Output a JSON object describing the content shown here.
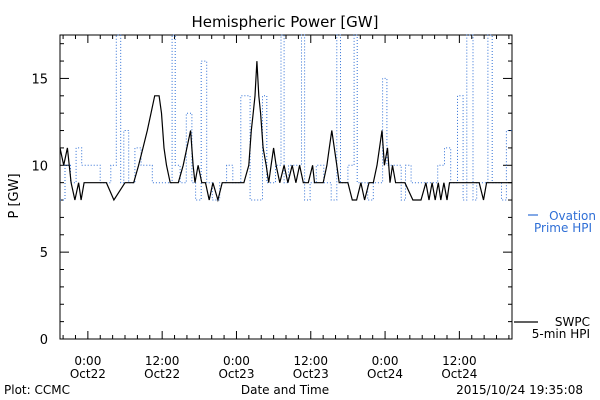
{
  "chart_data": {
    "type": "line",
    "title": "Hemispheric Power [GW]",
    "ylabel": "P [GW]",
    "xlabel": "Date and Time",
    "ylim": [
      0,
      17.5
    ],
    "y_ticks": [
      "0",
      "5",
      "10",
      "15"
    ],
    "x_unit": "hours from 2015-10-22 00:00 UT",
    "xlim": [
      -4.5,
      68.5
    ],
    "x_ticks": [
      {
        "x": 0,
        "time": "0:00",
        "date": "Oct22"
      },
      {
        "x": 12,
        "time": "12:00",
        "date": "Oct22"
      },
      {
        "x": 24,
        "time": "0:00",
        "date": "Oct23"
      },
      {
        "x": 36,
        "time": "12:00",
        "date": "Oct23"
      },
      {
        "x": 48,
        "time": "0:00",
        "date": "Oct24"
      },
      {
        "x": 60,
        "time": "12:00",
        "date": "Oct24"
      }
    ],
    "grid": false,
    "series": [
      {
        "name": "SWPC 5-min HPI",
        "color": "#000000",
        "style": "solid",
        "points": [
          [
            -4.5,
            11
          ],
          [
            -3.9,
            10
          ],
          [
            -3.3,
            11
          ],
          [
            -2.7,
            9
          ],
          [
            -2.1,
            8
          ],
          [
            -1.5,
            9
          ],
          [
            -1.1,
            8
          ],
          [
            -0.6,
            9
          ],
          [
            3.0,
            9
          ],
          [
            4.2,
            8
          ],
          [
            6.0,
            9
          ],
          [
            7.4,
            9
          ],
          [
            8.2,
            10
          ],
          [
            8.9,
            11
          ],
          [
            9.6,
            12
          ],
          [
            10.2,
            13
          ],
          [
            10.8,
            14
          ],
          [
            11.5,
            14
          ],
          [
            11.9,
            13
          ],
          [
            12.3,
            11
          ],
          [
            12.7,
            10
          ],
          [
            13.3,
            9
          ],
          [
            13.9,
            9
          ],
          [
            14.6,
            9
          ],
          [
            15.4,
            10
          ],
          [
            16.0,
            11
          ],
          [
            16.6,
            12
          ],
          [
            17.0,
            10
          ],
          [
            17.3,
            9
          ],
          [
            17.8,
            10
          ],
          [
            18.4,
            9
          ],
          [
            19.0,
            9
          ],
          [
            19.6,
            8
          ],
          [
            20.2,
            9
          ],
          [
            21.0,
            8
          ],
          [
            21.7,
            9
          ],
          [
            22.4,
            9
          ],
          [
            23.5,
            9
          ],
          [
            24.2,
            9
          ],
          [
            25.2,
            9
          ],
          [
            26.0,
            10
          ],
          [
            26.4,
            12
          ],
          [
            26.7,
            13
          ],
          [
            27.0,
            14
          ],
          [
            27.3,
            16
          ],
          [
            27.6,
            14
          ],
          [
            27.9,
            13
          ],
          [
            28.3,
            11
          ],
          [
            28.8,
            10
          ],
          [
            29.2,
            9
          ],
          [
            29.6,
            10
          ],
          [
            30.0,
            11
          ],
          [
            30.4,
            10
          ],
          [
            31.0,
            9
          ],
          [
            31.7,
            10
          ],
          [
            32.3,
            9
          ],
          [
            33.0,
            10
          ],
          [
            33.6,
            9
          ],
          [
            34.2,
            10
          ],
          [
            34.8,
            9
          ],
          [
            35.6,
            9
          ],
          [
            36.3,
            10
          ],
          [
            36.6,
            9
          ],
          [
            37.2,
            9
          ],
          [
            38.0,
            9
          ],
          [
            38.6,
            10
          ],
          [
            39.0,
            11
          ],
          [
            39.4,
            12
          ],
          [
            39.8,
            11
          ],
          [
            40.2,
            10
          ],
          [
            40.6,
            9
          ],
          [
            41.3,
            9
          ],
          [
            42.0,
            9
          ],
          [
            42.7,
            8
          ],
          [
            43.4,
            8
          ],
          [
            44.1,
            9
          ],
          [
            44.7,
            8
          ],
          [
            45.4,
            9
          ],
          [
            46.1,
            9
          ],
          [
            46.7,
            10
          ],
          [
            47.1,
            11
          ],
          [
            47.5,
            12
          ],
          [
            47.9,
            10
          ],
          [
            48.4,
            11
          ],
          [
            48.8,
            9
          ],
          [
            49.2,
            10
          ],
          [
            49.7,
            9
          ],
          [
            50.4,
            9
          ],
          [
            51.2,
            9
          ],
          [
            52.5,
            8
          ],
          [
            53.8,
            8
          ],
          [
            54.6,
            9
          ],
          [
            55.1,
            8
          ],
          [
            55.6,
            9
          ],
          [
            56.1,
            8
          ],
          [
            56.6,
            9
          ],
          [
            57.0,
            8
          ],
          [
            57.5,
            9
          ],
          [
            58.0,
            8
          ],
          [
            58.4,
            9
          ],
          [
            59.0,
            9
          ],
          [
            60.0,
            9
          ],
          [
            61.0,
            9
          ],
          [
            62.4,
            9
          ],
          [
            63.2,
            9
          ],
          [
            63.9,
            8
          ],
          [
            64.4,
            9
          ],
          [
            65.2,
            9
          ],
          [
            66.0,
            9
          ],
          [
            67.0,
            9
          ],
          [
            68.5,
            9
          ]
        ]
      },
      {
        "name": "Ovation Prime HPI",
        "color": "#2f6fd6",
        "style": "dotted",
        "points": [
          [
            -4.5,
            8
          ],
          [
            -3.7,
            8
          ],
          [
            -3.7,
            10
          ],
          [
            -2.8,
            10
          ],
          [
            -2.8,
            9
          ],
          [
            -1.9,
            9
          ],
          [
            -1.9,
            11
          ],
          [
            -1.0,
            11
          ],
          [
            -1.0,
            10
          ],
          [
            2.0,
            10
          ],
          [
            2.0,
            9
          ],
          [
            3.7,
            9
          ],
          [
            3.7,
            10
          ],
          [
            4.6,
            10
          ],
          [
            4.6,
            17.5
          ],
          [
            5.3,
            17.5
          ],
          [
            5.3,
            9
          ],
          [
            5.8,
            9
          ],
          [
            5.8,
            12
          ],
          [
            6.6,
            12
          ],
          [
            6.6,
            9
          ],
          [
            7.6,
            9
          ],
          [
            7.6,
            11
          ],
          [
            8.6,
            11
          ],
          [
            8.6,
            10
          ],
          [
            10.4,
            10
          ],
          [
            10.4,
            9
          ],
          [
            13.6,
            9
          ],
          [
            13.6,
            17.5
          ],
          [
            14.1,
            17.5
          ],
          [
            14.1,
            10
          ],
          [
            14.9,
            10
          ],
          [
            14.9,
            9
          ],
          [
            15.9,
            9
          ],
          [
            15.9,
            13
          ],
          [
            16.8,
            13
          ],
          [
            16.8,
            9
          ],
          [
            17.4,
            9
          ],
          [
            17.4,
            8
          ],
          [
            18.3,
            8
          ],
          [
            18.3,
            16
          ],
          [
            19.2,
            16
          ],
          [
            19.2,
            9
          ],
          [
            20.1,
            9
          ],
          [
            20.1,
            8
          ],
          [
            21.3,
            8
          ],
          [
            21.3,
            9
          ],
          [
            22.4,
            9
          ],
          [
            22.4,
            10
          ],
          [
            23.4,
            10
          ],
          [
            23.4,
            9
          ],
          [
            24.7,
            9
          ],
          [
            24.7,
            14
          ],
          [
            26.2,
            14
          ],
          [
            26.2,
            8
          ],
          [
            28.2,
            8
          ],
          [
            28.2,
            14
          ],
          [
            28.9,
            14
          ],
          [
            28.9,
            9
          ],
          [
            30.3,
            9
          ],
          [
            30.3,
            10
          ],
          [
            31.2,
            10
          ],
          [
            31.2,
            17.5
          ],
          [
            31.7,
            17.5
          ],
          [
            31.7,
            9
          ],
          [
            32.4,
            9
          ],
          [
            32.4,
            10
          ],
          [
            34.5,
            10
          ],
          [
            34.5,
            17.5
          ],
          [
            35.0,
            17.5
          ],
          [
            35.0,
            8
          ],
          [
            35.9,
            8
          ],
          [
            35.9,
            9
          ],
          [
            36.9,
            9
          ],
          [
            36.9,
            10
          ],
          [
            38.1,
            10
          ],
          [
            38.1,
            9
          ],
          [
            39.3,
            9
          ],
          [
            39.3,
            8
          ],
          [
            40.2,
            8
          ],
          [
            40.2,
            17.5
          ],
          [
            40.8,
            17.5
          ],
          [
            40.8,
            9
          ],
          [
            42.0,
            9
          ],
          [
            42.0,
            10
          ],
          [
            43.0,
            10
          ],
          [
            43.0,
            17.5
          ],
          [
            43.5,
            17.5
          ],
          [
            43.5,
            9
          ],
          [
            45.2,
            9
          ],
          [
            45.2,
            8
          ],
          [
            46.1,
            8
          ],
          [
            46.1,
            9
          ],
          [
            47.6,
            9
          ],
          [
            47.6,
            15
          ],
          [
            48.3,
            15
          ],
          [
            48.3,
            10
          ],
          [
            50.6,
            10
          ],
          [
            50.6,
            8
          ],
          [
            51.3,
            8
          ],
          [
            51.3,
            10
          ],
          [
            52.2,
            10
          ],
          [
            52.2,
            9
          ],
          [
            56.5,
            9
          ],
          [
            56.5,
            10
          ],
          [
            57.6,
            10
          ],
          [
            57.6,
            11
          ],
          [
            58.6,
            11
          ],
          [
            58.6,
            9
          ],
          [
            59.7,
            9
          ],
          [
            59.7,
            14
          ],
          [
            60.6,
            14
          ],
          [
            60.6,
            8
          ],
          [
            61.2,
            8
          ],
          [
            61.2,
            17.5
          ],
          [
            62.2,
            17.5
          ],
          [
            62.2,
            8
          ],
          [
            62.8,
            8
          ],
          [
            62.8,
            9
          ],
          [
            64.6,
            9
          ],
          [
            64.6,
            17.5
          ],
          [
            65.3,
            17.5
          ],
          [
            65.3,
            9
          ],
          [
            66.8,
            9
          ],
          [
            66.8,
            8
          ],
          [
            67.6,
            8
          ],
          [
            67.6,
            12
          ],
          [
            68.5,
            12
          ]
        ]
      }
    ],
    "legend": {
      "placement": "right",
      "ovation_label": [
        "Ovation",
        "Prime HPI"
      ],
      "swpc_label": [
        "SWPC",
        "5-min HPI"
      ]
    }
  },
  "footer": {
    "plot_credit": "Plot: CCMC",
    "timestamp": "2015/10/24 19:35:08"
  }
}
